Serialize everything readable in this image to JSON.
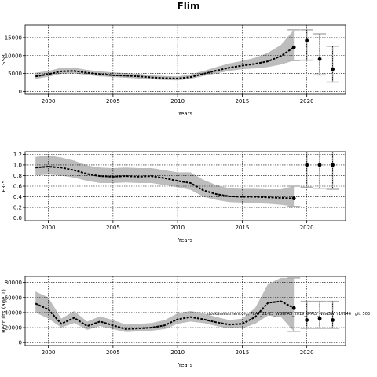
{
  "title": "Flim",
  "watermark": "stockassessment.org, PLA7_21-23_WGBFAS_2019_SPALY_NewSW, r10946 , git: 503",
  "colors": {
    "band": "#bdbdbd",
    "line": "#000000",
    "ci": "#b0b0b0"
  },
  "chart_data": [
    {
      "type": "line",
      "ylabel": "SSB",
      "xlabel": "Years",
      "xlim": [
        1998.2,
        2023.0
      ],
      "ylim": [
        -800,
        18500
      ],
      "xticks": [
        2000,
        2005,
        2010,
        2015,
        2020
      ],
      "yticks": [
        0,
        5000,
        10000,
        15000
      ],
      "grid": true,
      "x": [
        1999,
        2000,
        2001,
        2002,
        2003,
        2004,
        2005,
        2006,
        2007,
        2008,
        2009,
        2010,
        2011,
        2012,
        2013,
        2014,
        2015,
        2016,
        2017,
        2018,
        2019
      ],
      "values": [
        4200,
        4800,
        5600,
        5700,
        5200,
        4800,
        4500,
        4400,
        4200,
        3900,
        3700,
        3600,
        4000,
        4900,
        5800,
        6600,
        7200,
        7700,
        8400,
        9900,
        12300
      ],
      "lower": [
        3500,
        4100,
        4900,
        5000,
        4600,
        4200,
        4000,
        3800,
        3600,
        3400,
        3200,
        3100,
        3500,
        4300,
        5000,
        5700,
        6200,
        6400,
        6800,
        7500,
        8600
      ],
      "upper": [
        5200,
        5700,
        6600,
        6600,
        6000,
        5600,
        5300,
        5100,
        4900,
        4500,
        4300,
        4200,
        4700,
        5700,
        6800,
        7800,
        8500,
        9400,
        10800,
        13000,
        17200
      ],
      "projections": [
        {
          "x": 2020,
          "value": 14200,
          "lower": 8700,
          "upper": 17200
        },
        {
          "x": 2021,
          "value": 9000,
          "lower": 4600,
          "upper": 16100
        },
        {
          "x": 2022,
          "value": 6200,
          "lower": 2600,
          "upper": 12600
        }
      ]
    },
    {
      "type": "line",
      "ylabel": "F3-5",
      "xlabel": "Years",
      "xlim": [
        1998.2,
        2023.0
      ],
      "ylim": [
        -0.05,
        1.25
      ],
      "xticks": [
        2000,
        2005,
        2010,
        2015,
        2020
      ],
      "yticks": [
        0.0,
        0.2,
        0.4,
        0.6,
        0.8,
        1.0,
        1.2
      ],
      "grid": true,
      "x": [
        1999,
        2000,
        2001,
        2002,
        2003,
        2004,
        2005,
        2006,
        2007,
        2008,
        2009,
        2010,
        2011,
        2012,
        2013,
        2014,
        2015,
        2016,
        2017,
        2018,
        2019
      ],
      "values": [
        0.95,
        0.97,
        0.95,
        0.9,
        0.83,
        0.79,
        0.78,
        0.79,
        0.78,
        0.79,
        0.75,
        0.7,
        0.66,
        0.52,
        0.45,
        0.41,
        0.4,
        0.4,
        0.39,
        0.38,
        0.37
      ],
      "lower": [
        0.8,
        0.82,
        0.8,
        0.76,
        0.7,
        0.66,
        0.66,
        0.67,
        0.66,
        0.66,
        0.62,
        0.58,
        0.53,
        0.4,
        0.34,
        0.3,
        0.29,
        0.28,
        0.27,
        0.25,
        0.22
      ],
      "upper": [
        1.15,
        1.18,
        1.14,
        1.08,
        0.99,
        0.95,
        0.94,
        0.95,
        0.94,
        0.94,
        0.9,
        0.86,
        0.86,
        0.72,
        0.62,
        0.56,
        0.55,
        0.55,
        0.54,
        0.54,
        0.6
      ],
      "projections": [
        {
          "x": 2020,
          "value": 1.0,
          "lower": 0.58,
          "upper": 1.25
        },
        {
          "x": 2021,
          "value": 1.0,
          "lower": 0.56,
          "upper": 1.25
        },
        {
          "x": 2022,
          "value": 1.0,
          "lower": 0.54,
          "upper": 1.25
        }
      ]
    },
    {
      "type": "line",
      "ylabel": "Recruits (age 1)",
      "xlabel": "Years",
      "xlim": [
        1998.2,
        2023.0
      ],
      "ylim": [
        -4000,
        88000
      ],
      "xticks": [
        2000,
        2005,
        2010,
        2015,
        2020
      ],
      "yticks": [
        0,
        20000,
        40000,
        60000,
        80000
      ],
      "grid": true,
      "x": [
        1999,
        2000,
        2001,
        2002,
        2003,
        2004,
        2005,
        2006,
        2007,
        2008,
        2009,
        2010,
        2011,
        2012,
        2013,
        2014,
        2015,
        2016,
        2017,
        2018,
        2019
      ],
      "values": [
        52000,
        44000,
        25000,
        33000,
        22000,
        28000,
        23000,
        18000,
        19000,
        20000,
        23000,
        31000,
        34000,
        31000,
        27000,
        24000,
        25000,
        34000,
        53000,
        55000,
        46000
      ],
      "lower": [
        40000,
        32000,
        20000,
        26000,
        17000,
        22000,
        18000,
        14000,
        15000,
        16000,
        18000,
        25000,
        28000,
        26000,
        22000,
        19000,
        19000,
        25000,
        36000,
        34000,
        15000
      ],
      "upper": [
        68000,
        60000,
        32000,
        42000,
        28000,
        35000,
        30000,
        24000,
        25000,
        26000,
        30000,
        39000,
        42000,
        39000,
        34000,
        30000,
        32000,
        46000,
        78000,
        86000,
        86000
      ],
      "projections": [
        {
          "x": 2020,
          "value": 30000,
          "lower": 19000,
          "upper": 55000
        },
        {
          "x": 2021,
          "value": 32000,
          "lower": 19000,
          "upper": 55000
        },
        {
          "x": 2022,
          "value": 30000,
          "lower": 19000,
          "upper": 55000
        }
      ]
    }
  ]
}
